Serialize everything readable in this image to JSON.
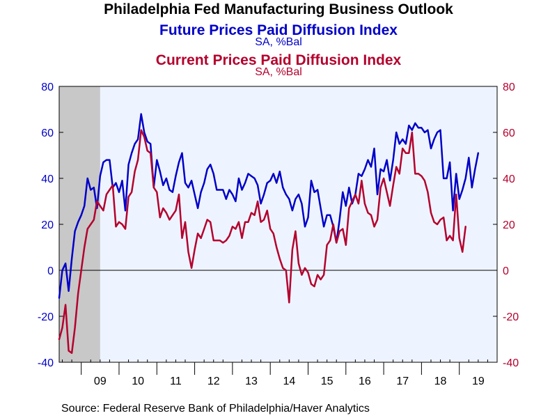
{
  "title": "Philadelphia Fed Manufacturing Business Outlook",
  "source": "Source:  Federal Reserve Bank of Philadelphia/Haver Analytics",
  "colors": {
    "background": "#ffffff",
    "plot_bg": "#eef4ff",
    "recession": "#c8c8c8",
    "future": "#0000c8",
    "current": "#b4002d",
    "axis": "#000000"
  },
  "chart_data": {
    "type": "line",
    "series": [
      {
        "name": "Future Prices Paid Diffusion Index",
        "units": "SA, %Bal",
        "axis": "left",
        "color": "#0000c8",
        "start": [
          2008,
          6
        ],
        "values": [
          -12,
          0,
          3,
          -9,
          5,
          17,
          21,
          24,
          28,
          40,
          35,
          36,
          27,
          41,
          47,
          48,
          48,
          36,
          38,
          34,
          39,
          26,
          46,
          51,
          55,
          57,
          68,
          60,
          56,
          55,
          36,
          48,
          43,
          37,
          40,
          35,
          34,
          41,
          47,
          51,
          38,
          36,
          39,
          33,
          27,
          34,
          38,
          44,
          46,
          42,
          35,
          35,
          35,
          31,
          35,
          33,
          30,
          40,
          35,
          38,
          42,
          41,
          40,
          37,
          29,
          33,
          38,
          39,
          42,
          38,
          43,
          36,
          33,
          31,
          26,
          31,
          33,
          29,
          19,
          23,
          39,
          34,
          35,
          27,
          19,
          24,
          24,
          19,
          12,
          22,
          34,
          28,
          36,
          29,
          33,
          42,
          41,
          44,
          48,
          45,
          53,
          33,
          44,
          43,
          48,
          39,
          48,
          60,
          55,
          57,
          55,
          63,
          61,
          64,
          62,
          62,
          60,
          61,
          53,
          57,
          60,
          61,
          40,
          40,
          47,
          26,
          42,
          31,
          35,
          40,
          49,
          36,
          44,
          51
        ]
      },
      {
        "name": "Current Prices Paid Diffusion Index",
        "units": "SA, %Bal",
        "axis": "right",
        "color": "#b4002d",
        "start": [
          2008,
          6
        ],
        "values": [
          -30,
          -25,
          -15,
          -35,
          -36,
          -25,
          -10,
          0,
          10,
          18,
          20,
          22,
          30,
          28,
          26,
          33,
          35,
          37,
          19,
          21,
          20,
          18,
          32,
          34,
          43,
          48,
          61,
          58,
          52,
          51,
          36,
          34,
          23,
          27,
          25,
          22,
          24,
          26,
          33,
          14,
          21,
          8,
          1,
          9,
          16,
          14,
          18,
          22,
          21,
          13,
          13,
          13,
          12,
          13,
          15,
          19,
          18,
          21,
          14,
          21,
          21,
          25,
          24,
          30,
          21,
          22,
          26,
          18,
          16,
          10,
          5,
          1,
          0,
          -14,
          9,
          17,
          3,
          -2,
          1,
          -1,
          -6,
          -7,
          -2,
          -4,
          -2,
          11,
          13,
          20,
          12,
          17,
          18,
          11,
          27,
          30,
          33,
          29,
          39,
          29,
          25,
          24,
          19,
          22,
          36,
          40,
          34,
          28,
          37,
          45,
          42,
          53,
          51,
          51,
          60,
          42,
          42,
          41,
          39,
          34,
          25,
          21,
          20,
          22,
          23,
          13,
          15,
          13,
          33,
          14,
          8,
          19
        ]
      }
    ],
    "x_ticks": [
      "09",
      "10",
      "11",
      "12",
      "13",
      "14",
      "15",
      "16",
      "17",
      "18",
      "19"
    ],
    "x_range": [
      "2008-06",
      "2019-12"
    ],
    "left_axis": {
      "min": -40,
      "max": 80,
      "ticks": [
        "80",
        "60",
        "40",
        "20",
        "0",
        "-20",
        "-40"
      ]
    },
    "right_axis": {
      "min": -40,
      "max": 80,
      "ticks": [
        "80",
        "60",
        "40",
        "20",
        "0",
        "-20",
        "-40"
      ]
    },
    "recession": {
      "start": "2008-06",
      "end": "2009-06"
    },
    "zero_line": true,
    "grid": false
  }
}
